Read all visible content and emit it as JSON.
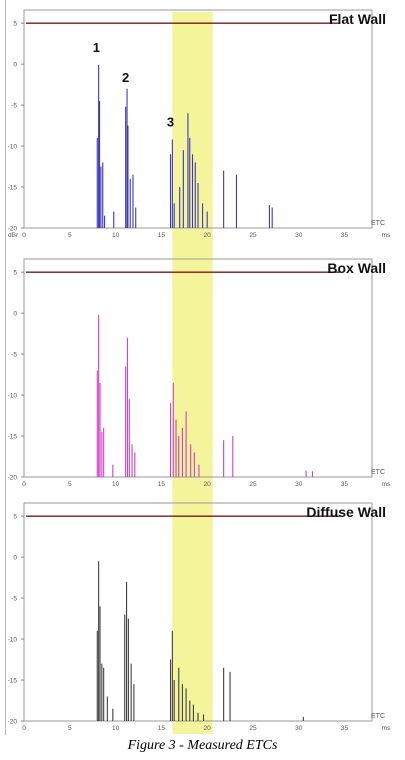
{
  "caption": "Figure 3 - Measured ETCs",
  "highlight": {
    "x_start": 16.2,
    "x_end": 20.6,
    "color": "#f2f28a"
  },
  "chart_data": [
    {
      "type": "line",
      "title": "Flat Wall",
      "color": "#3a3ab8",
      "xlabel": "ms",
      "ylabel": "dBr",
      "legend_label": "ETC",
      "xlim": [
        0,
        38
      ],
      "ylim": [
        -20,
        6
      ],
      "x_ticks": [
        "0",
        "5",
        "10",
        "15",
        "20",
        "25",
        "30",
        "35"
      ],
      "y_ticks": [
        "5",
        "0",
        "-5",
        "-10",
        "-15",
        "-20"
      ],
      "annotations": [
        {
          "text": "1",
          "x": 7.9,
          "y": 1.5
        },
        {
          "text": "2",
          "x": 11.1,
          "y": -2.2
        },
        {
          "text": "3",
          "x": 16.0,
          "y": -7.6
        }
      ],
      "peaks": [
        {
          "x": 8.0,
          "y": -9.0
        },
        {
          "x": 8.15,
          "y": -0.1
        },
        {
          "x": 8.25,
          "y": -4.5
        },
        {
          "x": 8.4,
          "y": -12.5
        },
        {
          "x": 8.6,
          "y": -12.0
        },
        {
          "x": 8.8,
          "y": -18.5
        },
        {
          "x": 9.8,
          "y": -18.0
        },
        {
          "x": 11.1,
          "y": -5.2
        },
        {
          "x": 11.25,
          "y": -3.0
        },
        {
          "x": 11.35,
          "y": -7.5
        },
        {
          "x": 11.6,
          "y": -14.0
        },
        {
          "x": 11.9,
          "y": -13.5
        },
        {
          "x": 12.2,
          "y": -17.5
        },
        {
          "x": 16.0,
          "y": -11.0
        },
        {
          "x": 16.2,
          "y": -9.2
        },
        {
          "x": 16.4,
          "y": -17.0
        },
        {
          "x": 17.0,
          "y": -15.0
        },
        {
          "x": 17.4,
          "y": -10.5
        },
        {
          "x": 17.9,
          "y": -6.0
        },
        {
          "x": 18.1,
          "y": -9.0
        },
        {
          "x": 18.4,
          "y": -11.0
        },
        {
          "x": 18.7,
          "y": -12.0
        },
        {
          "x": 19.0,
          "y": -14.5
        },
        {
          "x": 19.5,
          "y": -17.0
        },
        {
          "x": 20.0,
          "y": -18.0
        },
        {
          "x": 21.8,
          "y": -13.0
        },
        {
          "x": 23.2,
          "y": -13.5
        },
        {
          "x": 26.8,
          "y": -17.2
        },
        {
          "x": 27.1,
          "y": -17.5
        }
      ]
    },
    {
      "type": "line",
      "title": "Box Wall",
      "color": "#d040c8",
      "xlabel": "ms",
      "ylabel": "",
      "legend_label": "ETC",
      "xlim": [
        0,
        38
      ],
      "ylim": [
        -20,
        6
      ],
      "x_ticks": [
        "0",
        "5",
        "10",
        "15",
        "20",
        "25",
        "30",
        "35"
      ],
      "y_ticks": [
        "5",
        "0",
        "-5",
        "-10",
        "-15",
        "-20"
      ],
      "annotations": [],
      "peaks": [
        {
          "x": 8.0,
          "y": -7.0
        },
        {
          "x": 8.15,
          "y": -0.2
        },
        {
          "x": 8.3,
          "y": -8.5
        },
        {
          "x": 8.5,
          "y": -14.5
        },
        {
          "x": 8.7,
          "y": -14.0
        },
        {
          "x": 9.7,
          "y": -18.5
        },
        {
          "x": 11.1,
          "y": -6.5
        },
        {
          "x": 11.3,
          "y": -3.0
        },
        {
          "x": 11.5,
          "y": -10.5
        },
        {
          "x": 11.8,
          "y": -16.0
        },
        {
          "x": 12.1,
          "y": -17.0
        },
        {
          "x": 16.0,
          "y": -11.0
        },
        {
          "x": 16.3,
          "y": -8.5
        },
        {
          "x": 16.6,
          "y": -13.0
        },
        {
          "x": 16.9,
          "y": -15.0
        },
        {
          "x": 17.3,
          "y": -14.0
        },
        {
          "x": 17.7,
          "y": -12.0
        },
        {
          "x": 18.2,
          "y": -16.0
        },
        {
          "x": 18.6,
          "y": -17.0
        },
        {
          "x": 19.1,
          "y": -18.5
        },
        {
          "x": 21.8,
          "y": -15.5
        },
        {
          "x": 22.8,
          "y": -15.0
        },
        {
          "x": 30.8,
          "y": -19.2
        },
        {
          "x": 31.5,
          "y": -19.3
        }
      ]
    },
    {
      "type": "line",
      "title": "Diffuse Wall",
      "color": "#404040",
      "xlabel": "ms",
      "ylabel": "",
      "legend_label": "ETC",
      "xlim": [
        0,
        38
      ],
      "ylim": [
        -20,
        6
      ],
      "x_ticks": [
        "0",
        "5",
        "10",
        "15",
        "20",
        "25",
        "30",
        "35"
      ],
      "y_ticks": [
        "5",
        "0",
        "-5",
        "-10",
        "-15",
        "-20"
      ],
      "annotations": [],
      "peaks": [
        {
          "x": 8.0,
          "y": -9.0
        },
        {
          "x": 8.15,
          "y": -0.5
        },
        {
          "x": 8.3,
          "y": -6.0
        },
        {
          "x": 8.5,
          "y": -13.0
        },
        {
          "x": 8.7,
          "y": -13.5
        },
        {
          "x": 9.1,
          "y": -17.0
        },
        {
          "x": 9.7,
          "y": -18.5
        },
        {
          "x": 11.0,
          "y": -7.0
        },
        {
          "x": 11.2,
          "y": -3.0
        },
        {
          "x": 11.4,
          "y": -7.5
        },
        {
          "x": 11.7,
          "y": -13.0
        },
        {
          "x": 12.0,
          "y": -15.5
        },
        {
          "x": 16.0,
          "y": -12.5
        },
        {
          "x": 16.2,
          "y": -9.0
        },
        {
          "x": 16.4,
          "y": -15.0
        },
        {
          "x": 16.9,
          "y": -13.5
        },
        {
          "x": 17.3,
          "y": -15.5
        },
        {
          "x": 17.7,
          "y": -16.0
        },
        {
          "x": 18.1,
          "y": -17.5
        },
        {
          "x": 18.5,
          "y": -18.0
        },
        {
          "x": 19.0,
          "y": -19.0
        },
        {
          "x": 19.6,
          "y": -19.2
        },
        {
          "x": 21.8,
          "y": -13.5
        },
        {
          "x": 22.5,
          "y": -14.0
        },
        {
          "x": 30.5,
          "y": -19.5
        }
      ]
    }
  ]
}
